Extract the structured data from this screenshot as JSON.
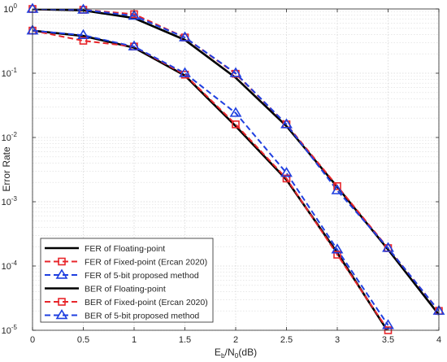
{
  "chart_data": {
    "type": "line",
    "title": "",
    "xlabel": {
      "main": "E",
      "sub1": "b",
      "mid": "/N",
      "sub2": "0",
      "tail": "(dB)"
    },
    "ylabel": "Error Rate",
    "xlim": [
      0,
      4
    ],
    "ylim": [
      1e-05,
      1
    ],
    "yscale": "log",
    "grid": true,
    "legend_position": "bottom-left",
    "x_ticks": [
      "0",
      "0.5",
      "1",
      "1.5",
      "2",
      "2.5",
      "3",
      "3.5",
      "4"
    ],
    "y_ticks": [
      {
        "base": "10",
        "exp": "0"
      },
      {
        "base": "10",
        "exp": "-1"
      },
      {
        "base": "10",
        "exp": "-2"
      },
      {
        "base": "10",
        "exp": "-3"
      },
      {
        "base": "10",
        "exp": "-4"
      },
      {
        "base": "10",
        "exp": "-5"
      }
    ],
    "series": [
      {
        "name": "FER of Floating-point",
        "color": "#000000",
        "style": "solid",
        "marker": "none",
        "x": [
          0,
          0.5,
          1,
          1.5,
          2,
          2.5,
          3,
          3.5,
          4
        ],
        "y": [
          0.99,
          0.95,
          0.72,
          0.33,
          0.085,
          0.015,
          0.0017,
          0.00018,
          1.75e-05
        ]
      },
      {
        "name": "FER of Fixed-point (Ercan 2020)",
        "color": "#e8262b",
        "style": "dashed",
        "marker": "square",
        "x": [
          0,
          0.5,
          1,
          1.5,
          2,
          2.5,
          3,
          3.5,
          4
        ],
        "y": [
          1.0,
          0.97,
          0.83,
          0.36,
          0.098,
          0.016,
          0.00175,
          0.00019,
          2e-05
        ]
      },
      {
        "name": "FER of 5-bit proposed method",
        "color": "#1f3fe0",
        "style": "dashed",
        "marker": "triangle",
        "x": [
          0,
          0.5,
          1,
          1.5,
          2,
          2.5,
          3,
          3.5,
          4
        ],
        "y": [
          1.0,
          0.97,
          0.78,
          0.36,
          0.1,
          0.016,
          0.0015,
          0.00019,
          2e-05
        ]
      },
      {
        "name": "BER of Floating-point",
        "color": "#000000",
        "style": "solid",
        "marker": "none",
        "x": [
          0,
          0.5,
          1,
          1.5,
          2,
          2.5,
          3,
          3.5
        ],
        "y": [
          0.46,
          0.38,
          0.25,
          0.092,
          0.015,
          0.0022,
          0.00016,
          9.5e-06
        ]
      },
      {
        "name": "BER of Fixed-point (Ercan 2020)",
        "color": "#e8262b",
        "style": "dashed",
        "marker": "square",
        "x": [
          0,
          0.5,
          1,
          1.5,
          2,
          2.5,
          3,
          3.5
        ],
        "y": [
          0.46,
          0.32,
          0.26,
          0.095,
          0.016,
          0.0023,
          0.00015,
          1e-05
        ]
      },
      {
        "name": "BER of 5-bit proposed method",
        "color": "#1f3fe0",
        "style": "dashed",
        "marker": "triangle",
        "x": [
          0,
          0.5,
          1,
          1.5,
          2,
          2.5,
          3,
          3.5
        ],
        "y": [
          0.46,
          0.39,
          0.26,
          0.1,
          0.024,
          0.0028,
          0.00018,
          1.2e-05
        ]
      }
    ]
  }
}
